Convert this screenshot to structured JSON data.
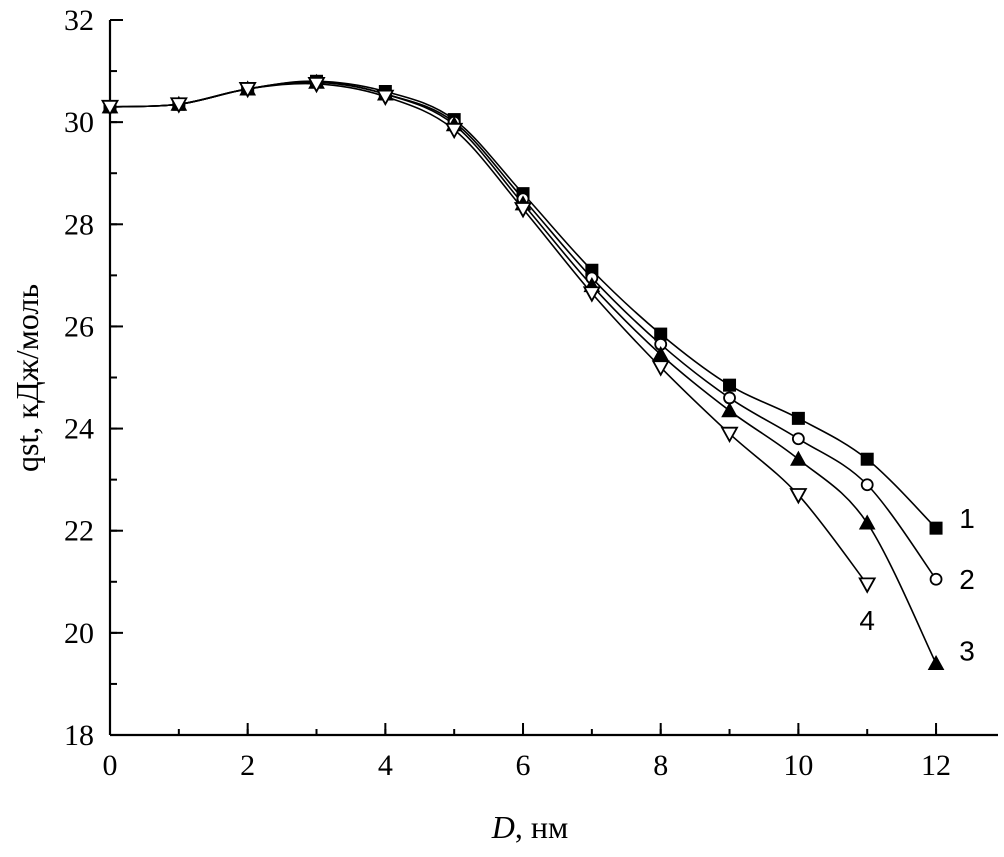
{
  "chart_data": {
    "type": "line",
    "title": "",
    "xlabel_italic": "D",
    "xlabel_rest": ", нм",
    "ylabel": "qst, кДж/моль",
    "xlim": [
      0,
      12.9
    ],
    "ylim": [
      18,
      32
    ],
    "xticks": [
      0,
      2,
      4,
      6,
      8,
      10,
      12
    ],
    "yticks": [
      18,
      20,
      22,
      24,
      26,
      28,
      30,
      32
    ],
    "x_minor_step": 1,
    "y_minor_step": 1,
    "grid": false,
    "series": [
      {
        "name": "1",
        "marker": "square-filled",
        "x": [
          0,
          1,
          2,
          3,
          4,
          5,
          6,
          7,
          8,
          9,
          10,
          11,
          12
        ],
        "y": [
          30.3,
          30.35,
          30.65,
          30.8,
          30.6,
          30.05,
          28.6,
          27.1,
          25.85,
          24.85,
          24.2,
          23.4,
          22.05
        ],
        "label_x": 12.45,
        "label_y": 22.25
      },
      {
        "name": "2",
        "marker": "circle-open",
        "x": [
          0,
          1,
          2,
          3,
          4,
          5,
          6,
          7,
          8,
          9,
          10,
          11,
          12
        ],
        "y": [
          30.3,
          30.35,
          30.65,
          30.8,
          30.55,
          30.0,
          28.5,
          26.95,
          25.65,
          24.6,
          23.8,
          22.9,
          21.05
        ],
        "label_x": 12.45,
        "label_y": 21.05
      },
      {
        "name": "3",
        "marker": "triangle-up-filled",
        "x": [
          0,
          1,
          2,
          3,
          4,
          5,
          6,
          7,
          8,
          9,
          10,
          11,
          12
        ],
        "y": [
          30.3,
          30.35,
          30.65,
          30.78,
          30.55,
          29.95,
          28.4,
          26.8,
          25.45,
          24.35,
          23.4,
          22.15,
          19.4
        ],
        "label_x": 12.45,
        "label_y": 19.65
      },
      {
        "name": "4",
        "marker": "triangle-down-open",
        "x": [
          0,
          1,
          2,
          3,
          4,
          5,
          6,
          7,
          8,
          9,
          10,
          11
        ],
        "y": [
          30.3,
          30.35,
          30.65,
          30.75,
          30.5,
          29.85,
          28.3,
          26.65,
          25.2,
          23.9,
          22.7,
          20.95
        ],
        "label_x": 11.0,
        "label_y": 20.25
      }
    ]
  }
}
